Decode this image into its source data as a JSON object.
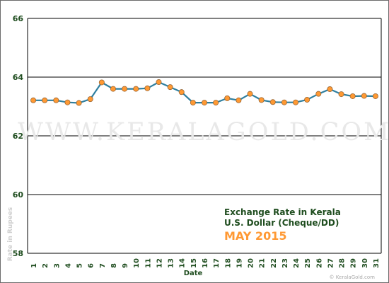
{
  "chart_data": {
    "type": "line",
    "title": "Exchange Rate in Kerala",
    "subtitle": "U.S. Dollar (Cheque/DD)",
    "period": "MAY 2015",
    "xlabel": "Date",
    "ylabel": "Rate in Rupees",
    "watermark": "WWW.KERALAGOLD.COM",
    "credit": "© KeralaGold.com",
    "ylim": [
      58,
      66
    ],
    "yticks": [
      58,
      60,
      62,
      64,
      66
    ],
    "x": [
      1,
      2,
      3,
      4,
      5,
      6,
      7,
      8,
      9,
      10,
      11,
      12,
      13,
      14,
      15,
      16,
      17,
      18,
      19,
      20,
      21,
      22,
      23,
      24,
      25,
      26,
      27,
      28,
      29,
      30,
      31
    ],
    "series": [
      {
        "values": [
          63.21,
          63.21,
          63.21,
          63.14,
          63.12,
          63.25,
          63.82,
          63.6,
          63.6,
          63.6,
          63.62,
          63.83,
          63.66,
          63.49,
          63.13,
          63.13,
          63.13,
          63.28,
          63.21,
          63.43,
          63.22,
          63.15,
          63.14,
          63.14,
          63.23,
          63.43,
          63.59,
          63.42,
          63.35,
          63.36,
          63.35
        ]
      }
    ],
    "grid": true,
    "colors": {
      "line": "#2f7f9f",
      "marker": "#ff9933",
      "marker_edge": "#996633",
      "title": "#1f4d1f",
      "period": "#ff9933",
      "axis_text": "#1f4d1f"
    }
  }
}
